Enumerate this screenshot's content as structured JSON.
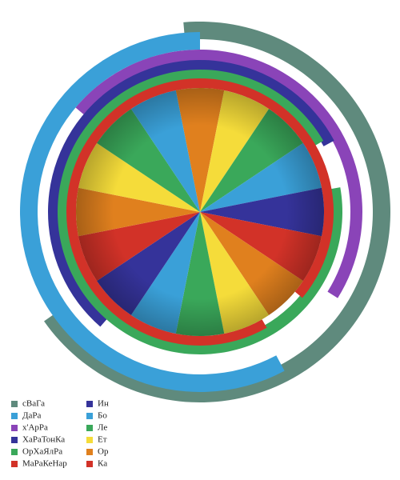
{
  "legend": [
    {
      "label": "сВаГа",
      "color": "#5f8a7d"
    },
    {
      "label": "ДаРа",
      "color": "#3aa0d8"
    },
    {
      "label": "х'АрРа",
      "color": "#8a44b8"
    },
    {
      "label": "ХаРаТонКа",
      "color": "#35339a"
    },
    {
      "label": "ОрХаЯлРа",
      "color": "#3aa85a"
    },
    {
      "label": "МаРаКеНар",
      "color": "#d23228"
    },
    {
      "label": "Ин",
      "color": "#35339a"
    },
    {
      "label": "Бо",
      "color": "#3aa0d8"
    },
    {
      "label": "Ле",
      "color": "#3aa85a"
    },
    {
      "label": "Ет",
      "color": "#f5dc3a"
    },
    {
      "label": "Ор",
      "color": "#e0801e"
    },
    {
      "label": "Ка",
      "color": "#d23228"
    }
  ]
}
